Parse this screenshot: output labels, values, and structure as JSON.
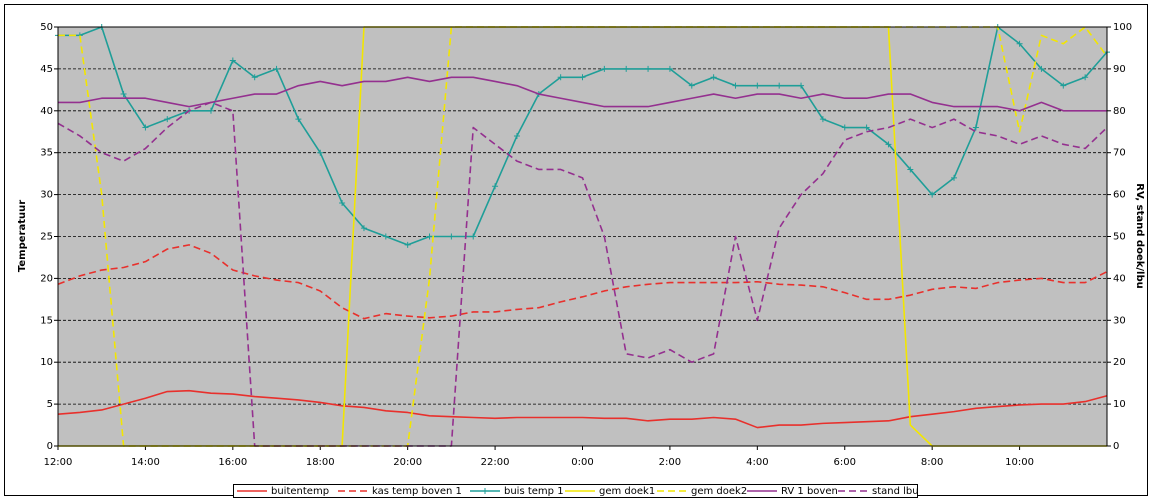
{
  "chart_data": {
    "type": "line",
    "ylabel": "Temperatuur",
    "y2label": "RV, stand doek/lbu",
    "categories": [
      "12:00",
      null,
      null,
      null,
      "14:00",
      null,
      null,
      null,
      "16:00",
      null,
      null,
      null,
      "18:00",
      null,
      null,
      null,
      "20:00",
      null,
      null,
      null,
      "22:00",
      null,
      null,
      null,
      "0:00",
      null,
      null,
      null,
      "2:00",
      null,
      null,
      null,
      "4:00",
      null,
      null,
      null,
      "6:00",
      null,
      null,
      null,
      "8:00",
      null,
      null,
      null,
      "10:00",
      null,
      null,
      null,
      null
    ],
    "ylim": [
      0,
      50
    ],
    "yticks": [
      0,
      5,
      10,
      15,
      20,
      25,
      30,
      35,
      40,
      45,
      50
    ],
    "y2lim": [
      0,
      100
    ],
    "y2ticks": [
      0,
      10,
      20,
      30,
      40,
      50,
      60,
      70,
      80,
      90,
      100
    ],
    "grid": true,
    "legend": "bottom",
    "series": [
      {
        "name": "buitentemp",
        "color": "#e8302c",
        "dashed": false,
        "values": [
          3.8,
          4,
          4.3,
          5,
          5.7,
          6.5,
          6.6,
          6.3,
          6.2,
          5.9,
          5.7,
          5.5,
          5.2,
          4.8,
          4.6,
          4.2,
          4,
          3.6,
          3.5,
          3.4,
          3.3,
          3.4,
          3.4,
          3.4,
          3.4,
          3.3,
          3.3,
          3,
          3.2,
          3.2,
          3.4,
          3.2,
          2.2,
          2.5,
          2.5,
          2.7,
          2.8,
          2.9,
          3,
          3.5,
          3.8,
          4.1,
          4.5,
          4.7,
          4.9,
          5,
          5,
          5.3,
          6
        ]
      },
      {
        "name": "kas temp boven 1",
        "color": "#e8302c",
        "dashed": true,
        "values": [
          19.3,
          20.3,
          21,
          21.3,
          22,
          23.5,
          24,
          23,
          21,
          20.3,
          19.8,
          19.5,
          18.5,
          16.5,
          15.2,
          15.8,
          15.5,
          15.3,
          15.5,
          16,
          16,
          16.3,
          16.5,
          17.2,
          17.8,
          18.5,
          19,
          19.3,
          19.5,
          19.5,
          19.5,
          19.5,
          19.6,
          19.3,
          19.2,
          19,
          18.3,
          17.5,
          17.5,
          18,
          18.7,
          19,
          18.8,
          19.5,
          19.8,
          20,
          19.5,
          19.5,
          20.8
        ]
      },
      {
        "name": "buis temp 1",
        "color": "#1f9e98",
        "dashed": false,
        "marker": "+",
        "values": [
          49,
          49,
          50,
          42,
          38,
          39,
          40,
          40,
          46,
          44,
          45,
          39,
          35,
          29,
          26,
          25,
          24,
          25,
          25,
          25,
          31,
          37,
          42,
          44,
          44,
          45,
          45,
          45,
          45,
          43,
          44,
          43,
          43,
          43,
          43,
          39,
          38,
          38,
          36,
          33,
          30,
          32,
          38,
          50,
          48,
          45,
          43,
          44,
          47
        ]
      },
      {
        "name": "gem doek1",
        "color": "#f2e600",
        "dashed": false,
        "axis": "y2",
        "values": [
          0,
          0,
          0,
          0,
          0,
          0,
          0,
          0,
          0,
          0,
          0,
          0,
          0,
          0,
          100,
          100,
          100,
          100,
          100,
          100,
          100,
          100,
          100,
          100,
          100,
          100,
          100,
          100,
          100,
          100,
          100,
          100,
          100,
          100,
          100,
          100,
          100,
          100,
          100,
          5,
          0,
          0,
          0,
          0,
          0,
          0,
          0,
          0,
          0
        ]
      },
      {
        "name": "gem doek2",
        "color": "#f2e600",
        "dashed": true,
        "axis": "y2",
        "values": [
          98,
          98,
          60,
          0,
          0,
          0,
          0,
          0,
          0,
          0,
          0,
          0,
          0,
          0,
          0,
          0,
          0,
          40,
          100,
          100,
          100,
          100,
          100,
          100,
          100,
          100,
          100,
          100,
          100,
          100,
          100,
          100,
          100,
          100,
          100,
          100,
          100,
          100,
          100,
          100,
          100,
          100,
          100,
          100,
          75,
          98,
          96,
          100,
          93
        ]
      },
      {
        "name": "RV 1 boven",
        "color": "#94308f",
        "dashed": false,
        "axis": "y2",
        "values": [
          82,
          82,
          83,
          83,
          83,
          82,
          81,
          82,
          83,
          84,
          84,
          86,
          87,
          86,
          87,
          87,
          88,
          87,
          88,
          88,
          87,
          86,
          84,
          83,
          82,
          81,
          81,
          81,
          82,
          83,
          84,
          83,
          84,
          84,
          83,
          84,
          83,
          83,
          84,
          84,
          82,
          81,
          81,
          81,
          80,
          82,
          80,
          80,
          80
        ]
      },
      {
        "name": "stand lbu",
        "color": "#94308f",
        "dashed": true,
        "axis": "y2",
        "values": [
          77,
          74,
          70,
          68,
          71,
          76,
          80,
          82,
          80,
          0,
          0,
          0,
          0,
          0,
          0,
          0,
          0,
          0,
          0,
          76,
          72,
          68,
          66,
          66,
          64,
          50,
          22,
          21,
          23,
          20,
          22,
          50,
          30,
          52,
          60,
          65,
          73,
          75,
          76,
          78,
          76,
          78,
          75,
          74,
          72,
          74,
          72,
          71,
          76
        ]
      }
    ]
  }
}
